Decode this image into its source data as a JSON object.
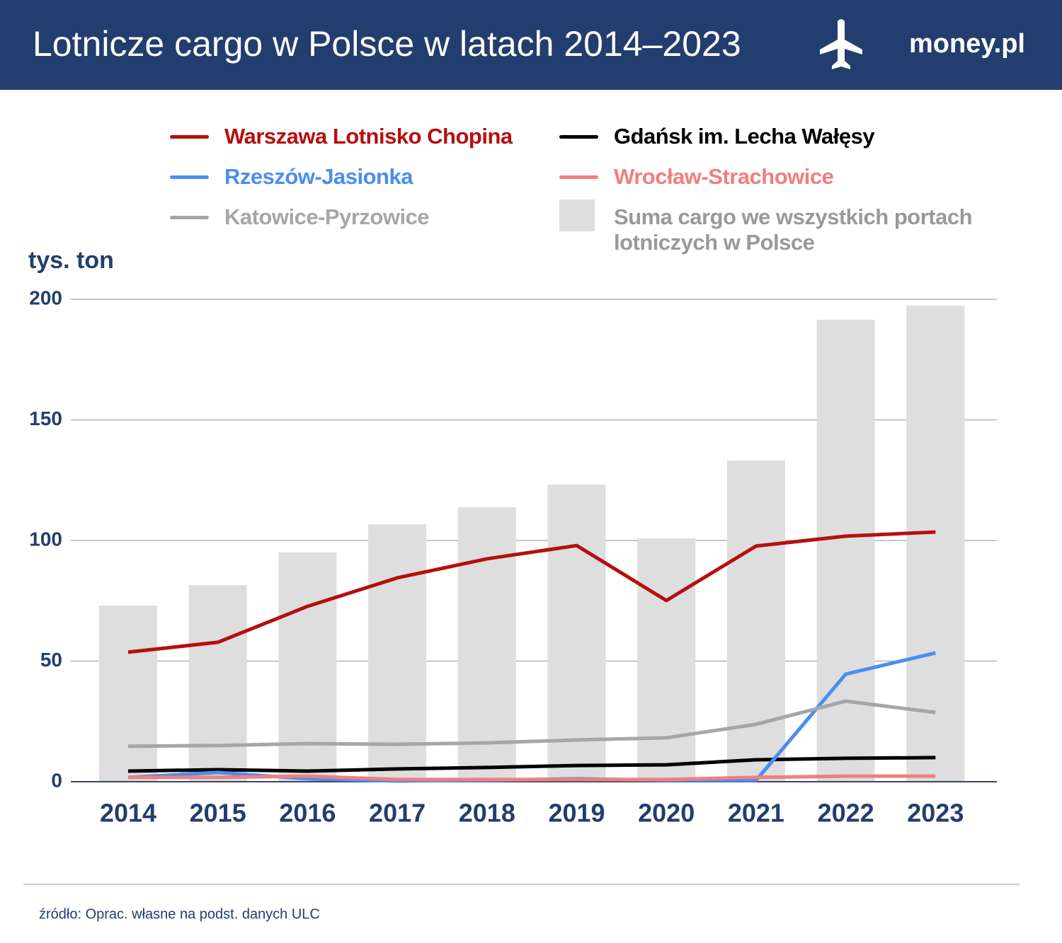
{
  "header": {
    "title": "Lotnicze cargo w Polsce w latach 2014–2023",
    "brand": "money.pl"
  },
  "chart_data": {
    "type": "combo",
    "y_label": "tys. ton",
    "categories": [
      "2014",
      "2015",
      "2016",
      "2017",
      "2018",
      "2019",
      "2020",
      "2021",
      "2022",
      "2023"
    ],
    "ylim": [
      0,
      200
    ],
    "yticks": [
      0,
      50,
      100,
      150,
      200
    ],
    "grid": true,
    "series": [
      {
        "name": "Warszawa Lotnisko Chopina",
        "type": "line",
        "color": "#b50f0f",
        "values": [
          53.7,
          57.8,
          72.7,
          84.5,
          92.4,
          97.9,
          75.1,
          97.7,
          101.8,
          103.5
        ]
      },
      {
        "name": "Gdańsk im. Lecha Wałęsy",
        "type": "line",
        "color": "#000000",
        "values": [
          4.4,
          5,
          4.4,
          5.3,
          5.9,
          6.7,
          7,
          9.1,
          9.7,
          10
        ]
      },
      {
        "name": "Rzeszów-Jasionka",
        "type": "line",
        "color": "#4a8ef0",
        "values": [
          1.8,
          3.8,
          1.2,
          0.3,
          0.6,
          1.2,
          0.6,
          0.6,
          44.6,
          53.4
        ]
      },
      {
        "name": "Wrocław-Strachowice",
        "type": "line",
        "color": "#f07f7f",
        "values": [
          1.8,
          1.8,
          2.3,
          0.9,
          0.9,
          0.9,
          0.9,
          1.8,
          2.3,
          2.3
        ]
      },
      {
        "name": "Katowice-Pyrzowice",
        "type": "line",
        "color": "#a6a6a6",
        "values": [
          14.7,
          15,
          15.8,
          15.5,
          16.1,
          17.3,
          18.2,
          23.8,
          33.4,
          28.7
        ]
      },
      {
        "name": "Suma cargo we wszystkich portach lotniczych w Polsce",
        "type": "bar",
        "color": "#dedede",
        "values": [
          73,
          81.5,
          95,
          106.7,
          113.8,
          123.2,
          100.9,
          133.1,
          191.5,
          197.4
        ]
      }
    ]
  },
  "source": "źródło: Oprac. własne na podst. danych ULC"
}
